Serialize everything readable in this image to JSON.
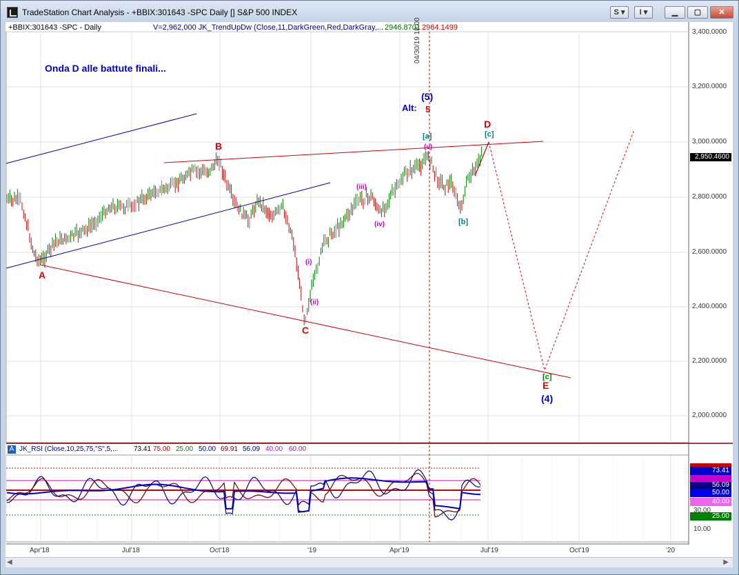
{
  "window": {
    "title": "TradeStation Chart Analysis - +BBIX:301643 -SPC Daily [] S&P 500 INDEX",
    "buttons": {
      "s_label": "S ▾",
      "i_label": "I ▾"
    }
  },
  "price_pane": {
    "symbol_label": "+BBIX:301643 -SPC - Daily",
    "indicator_label": "V=2,962,000  JK_TrendUpDw (Close,11,DarkGreen,Red,DarkGray,...",
    "indicator_values": [
      "2946.8701",
      "2964.1499"
    ],
    "annotation": "Onda D alle battute finali...",
    "vertical_marker": "04/30/19 18:00",
    "price_axis": [
      "3,400.0000",
      "3,200.0000",
      "3,000.0000",
      "2,800.0000",
      "2,600.0000",
      "2,400.0000",
      "2,200.0000",
      "2,000.0000"
    ],
    "last_price": "2,950.4600",
    "waves": {
      "A": "A",
      "B": "B",
      "C": "C",
      "D": "D",
      "E": "E",
      "w5": "(5)",
      "alt": "Alt:",
      "alt5": "5",
      "w4": "(4)",
      "a": "[a]",
      "b": "[b]",
      "c_top": "[c]",
      "c_bottom": "[c]",
      "i": "(i)",
      "ii": "(ii)",
      "iii": "(iii)",
      "iv": "(iv)",
      "v": "(v)"
    }
  },
  "rsi_pane": {
    "marker": "A",
    "label": "JK_RSI (Close,10,25,75,\"S\",5,...",
    "values": [
      {
        "text": "73.41",
        "color": "#333333"
      },
      {
        "text": "75.00",
        "color": "#cc0000"
      },
      {
        "text": "25.00",
        "color": "#008000"
      },
      {
        "text": "50.00",
        "color": "#000080"
      },
      {
        "text": "69.91",
        "color": "#660000"
      },
      {
        "text": "56.09",
        "color": "#000080"
      },
      {
        "text": "40.00",
        "color": "#cc00cc"
      },
      {
        "text": "60.00",
        "color": "#cc00cc"
      }
    ],
    "axis": [
      "10.00"
    ],
    "tags": {
      "v7341": "73.41",
      "v5609": "56.09",
      "v5000": "50.00",
      "v4000": "40.00",
      "v3000": "30.00",
      "v2500": "25.00"
    }
  },
  "time_axis": [
    "Apr'18",
    "Jul'18",
    "Oct'18",
    "'19",
    "Apr'19",
    "Jul'19",
    "Oct'19",
    "'20"
  ],
  "colors": {
    "up_bar": "#008000",
    "down_bar": "#cc0000",
    "neutral_bar": "#808080",
    "wave_blue": "#0000cc",
    "wave_red": "#dd0000",
    "wave_teal": "#008080",
    "wave_magenta": "#cc00cc"
  }
}
